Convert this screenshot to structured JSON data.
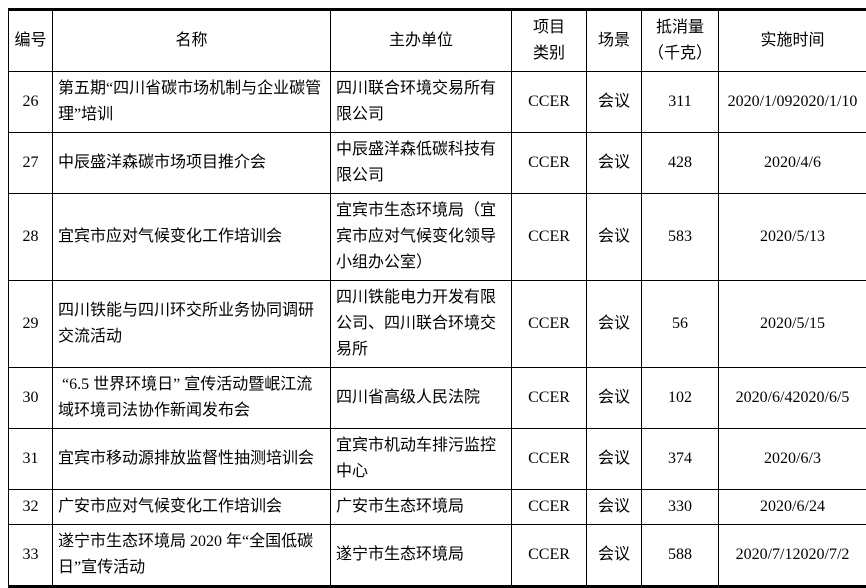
{
  "table": {
    "headers": [
      "编号",
      "名称",
      "主办单位",
      "项目\n类别",
      "场景",
      "抵消量\n（千克）",
      "实施时间"
    ],
    "rows": [
      [
        "26",
        "第五期“四川省碳市场机制与企业碳管理”培训",
        "四川联合环境交易所有限公司",
        "CCER",
        "会议",
        "311",
        "2020/1/092020/1/10"
      ],
      [
        "27",
        "中辰盛洋森碳市场项目推介会",
        "中辰盛洋森低碳科技有限公司",
        "CCER",
        "会议",
        "428",
        "2020/4/6"
      ],
      [
        "28",
        "宜宾市应对气候变化工作培训会",
        "宜宾市生态环境局（宜宾市应对气候变化领导小组办公室）",
        "CCER",
        "会议",
        "583",
        "2020/5/13"
      ],
      [
        "29",
        "四川铁能与四川环交所业务协同调研交流活动",
        "四川铁能电力开发有限公司、四川联合环境交易所",
        "CCER",
        "会议",
        "56",
        "2020/5/15"
      ],
      [
        "30",
        " “6.5 世界环境日” 宣传活动暨岷江流域环境司法协作新闻发布会",
        "四川省高级人民法院",
        "CCER",
        "会议",
        "102",
        "2020/6/42020/6/5"
      ],
      [
        "31",
        "宜宾市移动源排放监督性抽测培训会",
        "宜宾市机动车排污监控中心",
        "CCER",
        "会议",
        "374",
        "2020/6/3"
      ],
      [
        "32",
        "广安市应对气候变化工作培训会",
        "广安市生态环境局",
        "CCER",
        "会议",
        "330",
        "2020/6/24"
      ],
      [
        "33",
        "遂宁市生态环境局 2020 年“全国低碳日”宣传活动",
        "遂宁市生态环境局",
        "CCER",
        "会议",
        "588",
        "2020/7/12020/7/2"
      ]
    ],
    "text_color": "#000000",
    "border_color": "#000000"
  }
}
